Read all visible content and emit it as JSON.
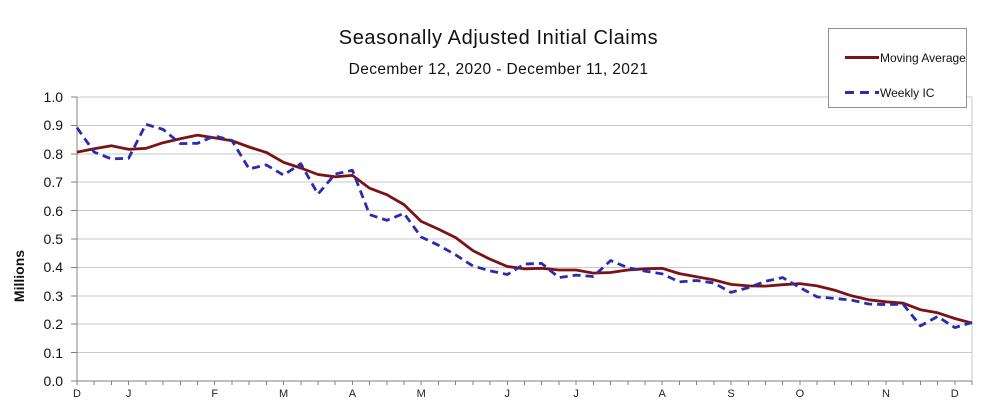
{
  "chart_data": {
    "type": "line",
    "title": "Seasonally Adjusted Initial Claims",
    "subtitle": "December 12, 2020 - December 11, 2021",
    "ylabel": "Millions",
    "ylim": [
      0.0,
      1.0
    ],
    "ytick_step": 0.1,
    "grid": "horizontal",
    "legend_position": "top-right",
    "x_unit": "week",
    "week_count": 53,
    "month_ticks": [
      {
        "label": "D",
        "week": 1
      },
      {
        "label": "J",
        "week": 4
      },
      {
        "label": "F",
        "week": 9
      },
      {
        "label": "M",
        "week": 13
      },
      {
        "label": "A",
        "week": 17
      },
      {
        "label": "M",
        "week": 21
      },
      {
        "label": "J",
        "week": 26
      },
      {
        "label": "J",
        "week": 30
      },
      {
        "label": "A",
        "week": 35
      },
      {
        "label": "S",
        "week": 39
      },
      {
        "label": "O",
        "week": 43
      },
      {
        "label": "N",
        "week": 48
      },
      {
        "label": "D",
        "week": 52
      }
    ],
    "series": [
      {
        "name": "Moving Average",
        "line_style": "solid",
        "color": "#7b1316",
        "values": [
          0.806,
          0.818,
          0.828,
          0.816,
          0.819,
          0.839,
          0.853,
          0.866,
          0.856,
          0.846,
          0.824,
          0.805,
          0.77,
          0.75,
          0.727,
          0.719,
          0.724,
          0.679,
          0.656,
          0.621,
          0.562,
          0.535,
          0.505,
          0.459,
          0.429,
          0.403,
          0.395,
          0.397,
          0.391,
          0.391,
          0.38,
          0.382,
          0.391,
          0.395,
          0.397,
          0.378,
          0.367,
          0.356,
          0.34,
          0.335,
          0.334,
          0.339,
          0.343,
          0.335,
          0.32,
          0.3,
          0.286,
          0.279,
          0.274,
          0.251,
          0.24,
          0.22,
          0.204
        ]
      },
      {
        "name": "Weekly IC",
        "line_style": "dashed",
        "color": "#2b2bad",
        "values": [
          0.892,
          0.806,
          0.782,
          0.784,
          0.904,
          0.886,
          0.836,
          0.837,
          0.863,
          0.847,
          0.747,
          0.761,
          0.725,
          0.765,
          0.658,
          0.729,
          0.742,
          0.586,
          0.566,
          0.59,
          0.507,
          0.478,
          0.444,
          0.405,
          0.388,
          0.375,
          0.412,
          0.414,
          0.364,
          0.373,
          0.368,
          0.424,
          0.399,
          0.387,
          0.377,
          0.349,
          0.354,
          0.345,
          0.312,
          0.329,
          0.351,
          0.364,
          0.329,
          0.296,
          0.291,
          0.285,
          0.271,
          0.269,
          0.27,
          0.194,
          0.227,
          0.188,
          0.206
        ]
      }
    ]
  }
}
